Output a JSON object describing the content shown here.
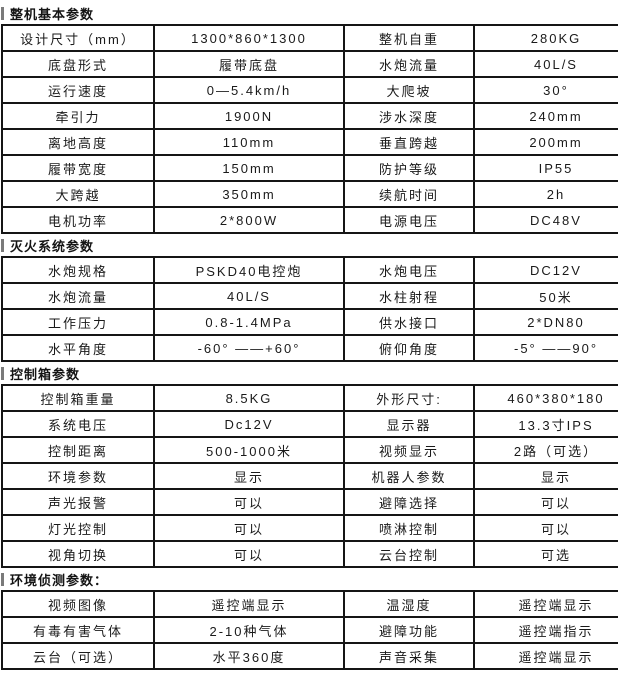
{
  "page": {
    "background": "#ffffff",
    "table_border_color": "#151515",
    "accent_bar_color": "#7a7a7a",
    "text_color": "#1a1a1a"
  },
  "sections": [
    {
      "title": "整机基本参数",
      "rows": [
        [
          "设计尺寸（mm）",
          "1300*860*1300",
          "整机自重",
          "280KG"
        ],
        [
          "底盘形式",
          "履带底盘",
          "水炮流量",
          "40L/S"
        ],
        [
          "运行速度",
          "0—5.4km/h",
          "大爬坡",
          "30°"
        ],
        [
          "牵引力",
          "1900N",
          "涉水深度",
          "240mm"
        ],
        [
          "离地高度",
          "110mm",
          "垂直跨越",
          "200mm"
        ],
        [
          "履带宽度",
          "150mm",
          "防护等级",
          "IP55"
        ],
        [
          "大跨越",
          "350mm",
          "续航时间",
          "2h"
        ],
        [
          "电机功率",
          "2*800W",
          "电源电压",
          "DC48V"
        ]
      ]
    },
    {
      "title": "灭火系统参数",
      "rows": [
        [
          "水炮规格",
          "PSKD40电控炮",
          "水炮电压",
          "DC12V"
        ],
        [
          "水炮流量",
          "40L/S",
          "水柱射程",
          "50米"
        ],
        [
          "工作压力",
          "0.8-1.4MPa",
          "供水接口",
          "2*DN80"
        ],
        [
          "水平角度",
          "-60° ——+60°",
          "俯仰角度",
          "-5° ——90°"
        ]
      ]
    },
    {
      "title": "控制箱参数",
      "rows": [
        [
          "控制箱重量",
          "8.5KG",
          "外形尺寸:",
          "460*380*180"
        ],
        [
          "系统电压",
          "Dc12V",
          "显示器",
          "13.3寸IPS"
        ],
        [
          "控制距离",
          "500-1000米",
          "视频显示",
          "2路（可选）"
        ],
        [
          "环境参数",
          "显示",
          "机器人参数",
          "显示"
        ],
        [
          "声光报警",
          "可以",
          "避障选择",
          "可以"
        ],
        [
          "灯光控制",
          "可以",
          "喷淋控制",
          "可以"
        ],
        [
          "视角切换",
          "可以",
          "云台控制",
          "可选"
        ]
      ]
    },
    {
      "title": "环境侦测参数：",
      "rows": [
        [
          "视频图像",
          "遥控端显示",
          "温湿度",
          "遥控端显示"
        ],
        [
          "有毒有害气体",
          "2-10种气体",
          "避障功能",
          "遥控端指示"
        ],
        [
          "云台（可选）",
          "水平360度",
          "声音采集",
          "遥控端显示"
        ]
      ]
    }
  ]
}
